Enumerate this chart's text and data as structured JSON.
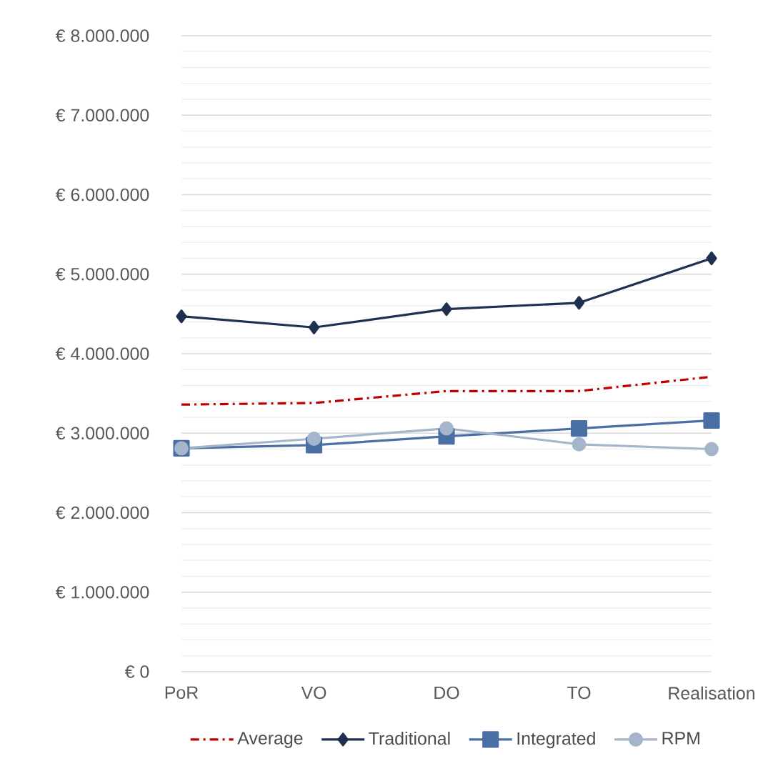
{
  "chart_data": {
    "type": "line",
    "categories": [
      "PoR",
      "VO",
      "DO",
      "TO",
      "Realisation"
    ],
    "series": [
      {
        "name": "Average",
        "color": "#c00000",
        "marker": "none",
        "line_style": "dashed",
        "values": [
          3360000,
          3380000,
          3530000,
          3530000,
          3710000
        ]
      },
      {
        "name": "Traditional",
        "color": "#1f3150",
        "marker": "diamond",
        "line_style": "solid",
        "values": [
          4470000,
          4330000,
          4560000,
          4640000,
          5200000
        ]
      },
      {
        "name": "Integrated",
        "color": "#4a6fa5",
        "marker": "square",
        "line_style": "solid",
        "values": [
          2810000,
          2850000,
          2960000,
          3060000,
          3160000
        ]
      },
      {
        "name": "RPM",
        "color": "#a5b5cc",
        "marker": "circle",
        "line_style": "solid",
        "values": [
          2810000,
          2930000,
          3060000,
          2860000,
          2800000
        ]
      }
    ],
    "ylim": [
      0,
      8000000
    ],
    "yticks": [
      {
        "value": 0,
        "label": "€ 0"
      },
      {
        "value": 1000000,
        "label": "€ 1.000.000"
      },
      {
        "value": 2000000,
        "label": "€ 2.000.000"
      },
      {
        "value": 3000000,
        "label": "€ 3.000.000"
      },
      {
        "value": 4000000,
        "label": "€ 4.000.000"
      },
      {
        "value": 5000000,
        "label": "€ 5.000.000"
      },
      {
        "value": 6000000,
        "label": "€ 6.000.000"
      },
      {
        "value": 7000000,
        "label": "€ 7.000.000"
      },
      {
        "value": 8000000,
        "label": "€ 8.000.000"
      }
    ],
    "grid": "y",
    "legend": "bottom"
  }
}
